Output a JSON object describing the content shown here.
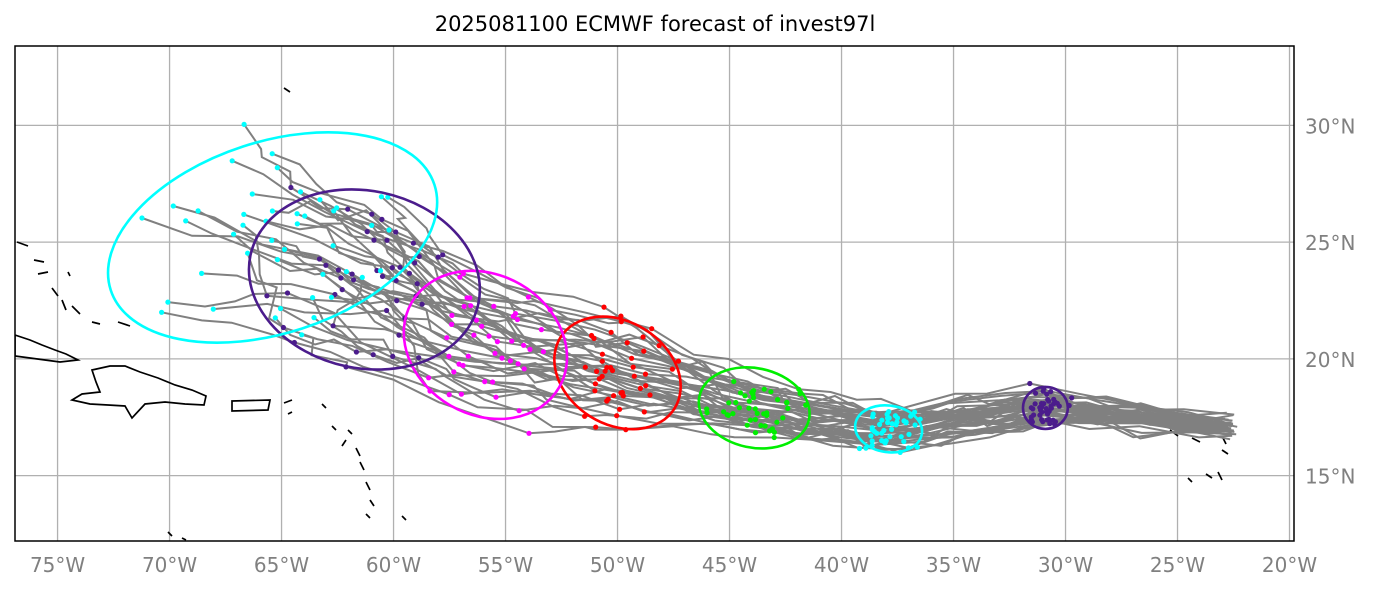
{
  "title": "2025081100 ECMWF forecast of invest97l",
  "map": {
    "projection": "PlateCarree",
    "lon_range": [
      -76.9,
      -19.8
    ],
    "lat_range": [
      12.2,
      33.4
    ],
    "gridline_color": "#b0b0b0",
    "track_color": "#808080",
    "coastline_color": "#000000",
    "lon_ticks": [
      {
        "value": -75,
        "label": "75°W"
      },
      {
        "value": -70,
        "label": "70°W"
      },
      {
        "value": -65,
        "label": "65°W"
      },
      {
        "value": -60,
        "label": "60°W"
      },
      {
        "value": -55,
        "label": "55°W"
      },
      {
        "value": -50,
        "label": "50°W"
      },
      {
        "value": -45,
        "label": "45°W"
      },
      {
        "value": -40,
        "label": "40°W"
      },
      {
        "value": -35,
        "label": "35°W"
      },
      {
        "value": -30,
        "label": "30°W"
      },
      {
        "value": -25,
        "label": "25°W"
      },
      {
        "value": -20,
        "label": "20°W"
      }
    ],
    "lat_ticks": [
      {
        "value": 30,
        "label": "30°N"
      },
      {
        "value": 25,
        "label": "25°N"
      },
      {
        "value": 20,
        "label": "20°N"
      },
      {
        "value": 15,
        "label": "15°N"
      }
    ]
  },
  "ellipses": [
    {
      "color": "#4b1c8c",
      "center": [
        -30.9,
        17.9
      ],
      "rx_deg": 1.0,
      "ry_deg": 0.9,
      "rot": 0
    },
    {
      "color": "#00ffff",
      "center": [
        -37.9,
        17.0
      ],
      "rx_deg": 1.5,
      "ry_deg": 1.0,
      "rot": 8
    },
    {
      "color": "#00ee00",
      "center": [
        -43.9,
        17.9
      ],
      "rx_deg": 2.5,
      "ry_deg": 1.7,
      "rot": 12
    },
    {
      "color": "#ff0000",
      "center": [
        -50.0,
        19.4
      ],
      "rx_deg": 3.0,
      "ry_deg": 2.2,
      "rot": 32
    },
    {
      "color": "#ff00ff",
      "center": [
        -55.9,
        20.6
      ],
      "rx_deg": 3.8,
      "ry_deg": 3.0,
      "rot": 30
    },
    {
      "color": "#4b1c8c",
      "center": [
        -61.3,
        23.4
      ],
      "rx_deg": 5.2,
      "ry_deg": 3.8,
      "rot": 12
    },
    {
      "color": "#00ffff",
      "center": [
        -65.4,
        25.2
      ],
      "rx_deg": 7.6,
      "ry_deg": 4.1,
      "rot": -18
    }
  ],
  "point_groups": [
    {
      "color": "#4b1c8c",
      "center": [
        -30.9,
        17.9
      ],
      "sx": 0.6,
      "sy": 0.55,
      "n": 34
    },
    {
      "color": "#00ffff",
      "center": [
        -37.9,
        17.0
      ],
      "sx": 0.9,
      "sy": 0.6,
      "n": 34
    },
    {
      "color": "#00ee00",
      "center": [
        -43.9,
        17.9
      ],
      "sx": 1.5,
      "sy": 0.9,
      "n": 44
    },
    {
      "color": "#ff0000",
      "center": [
        -50.0,
        19.4
      ],
      "sx": 1.8,
      "sy": 1.4,
      "n": 44
    },
    {
      "color": "#ff00ff",
      "center": [
        -55.9,
        20.6
      ],
      "sx": 2.2,
      "sy": 1.8,
      "n": 44
    },
    {
      "color": "#4b1c8c",
      "center": [
        -61.3,
        23.4
      ],
      "sx": 3.0,
      "sy": 2.2,
      "n": 44
    },
    {
      "color": "#00ffff",
      "center": [
        -65.4,
        25.2
      ],
      "sx": 4.4,
      "sy": 2.5,
      "n": 44
    }
  ]
}
